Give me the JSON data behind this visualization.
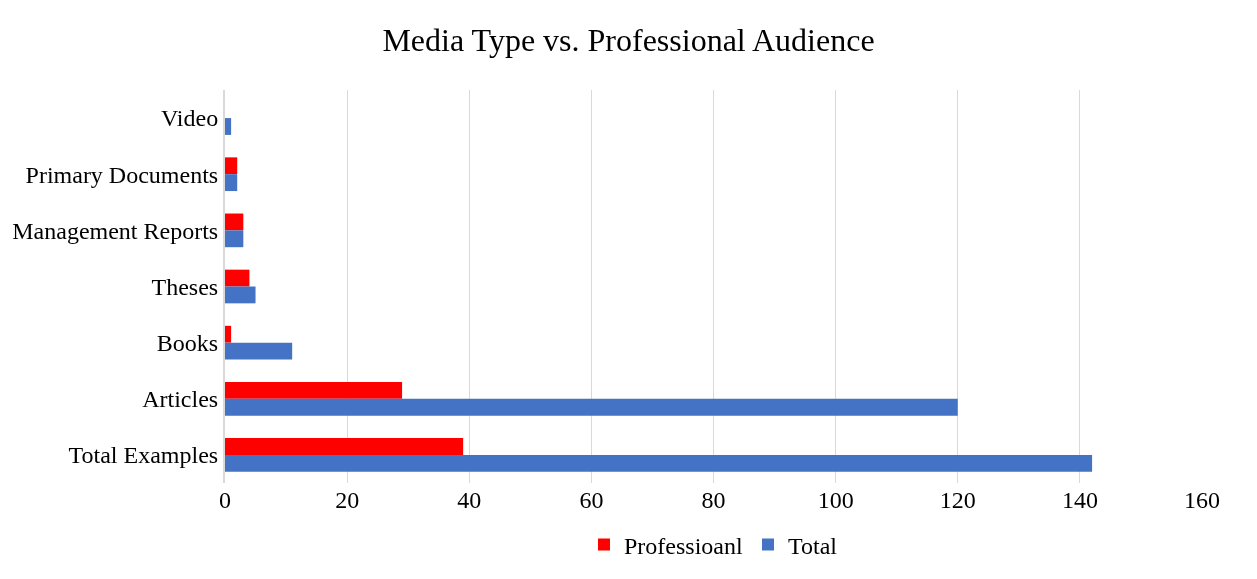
{
  "chart_data": {
    "type": "bar",
    "orientation": "horizontal",
    "title": "Media Type vs. Professional Audience",
    "categories": [
      "Video",
      "Primary Documents",
      "Management Reports",
      "Theses",
      "Books",
      "Articles",
      "Total Examples"
    ],
    "series": [
      {
        "name": "Professioanl",
        "color": "#ff0000",
        "values": [
          0,
          2,
          3,
          4,
          1,
          29,
          39
        ]
      },
      {
        "name": "Total",
        "color": "#4472c4",
        "values": [
          1,
          2,
          3,
          5,
          11,
          120,
          142
        ]
      }
    ],
    "xlim": [
      0,
      160
    ],
    "xticks": [
      0,
      20,
      40,
      60,
      80,
      100,
      120,
      140,
      160
    ],
    "grid": "x",
    "legend": "bottom"
  }
}
